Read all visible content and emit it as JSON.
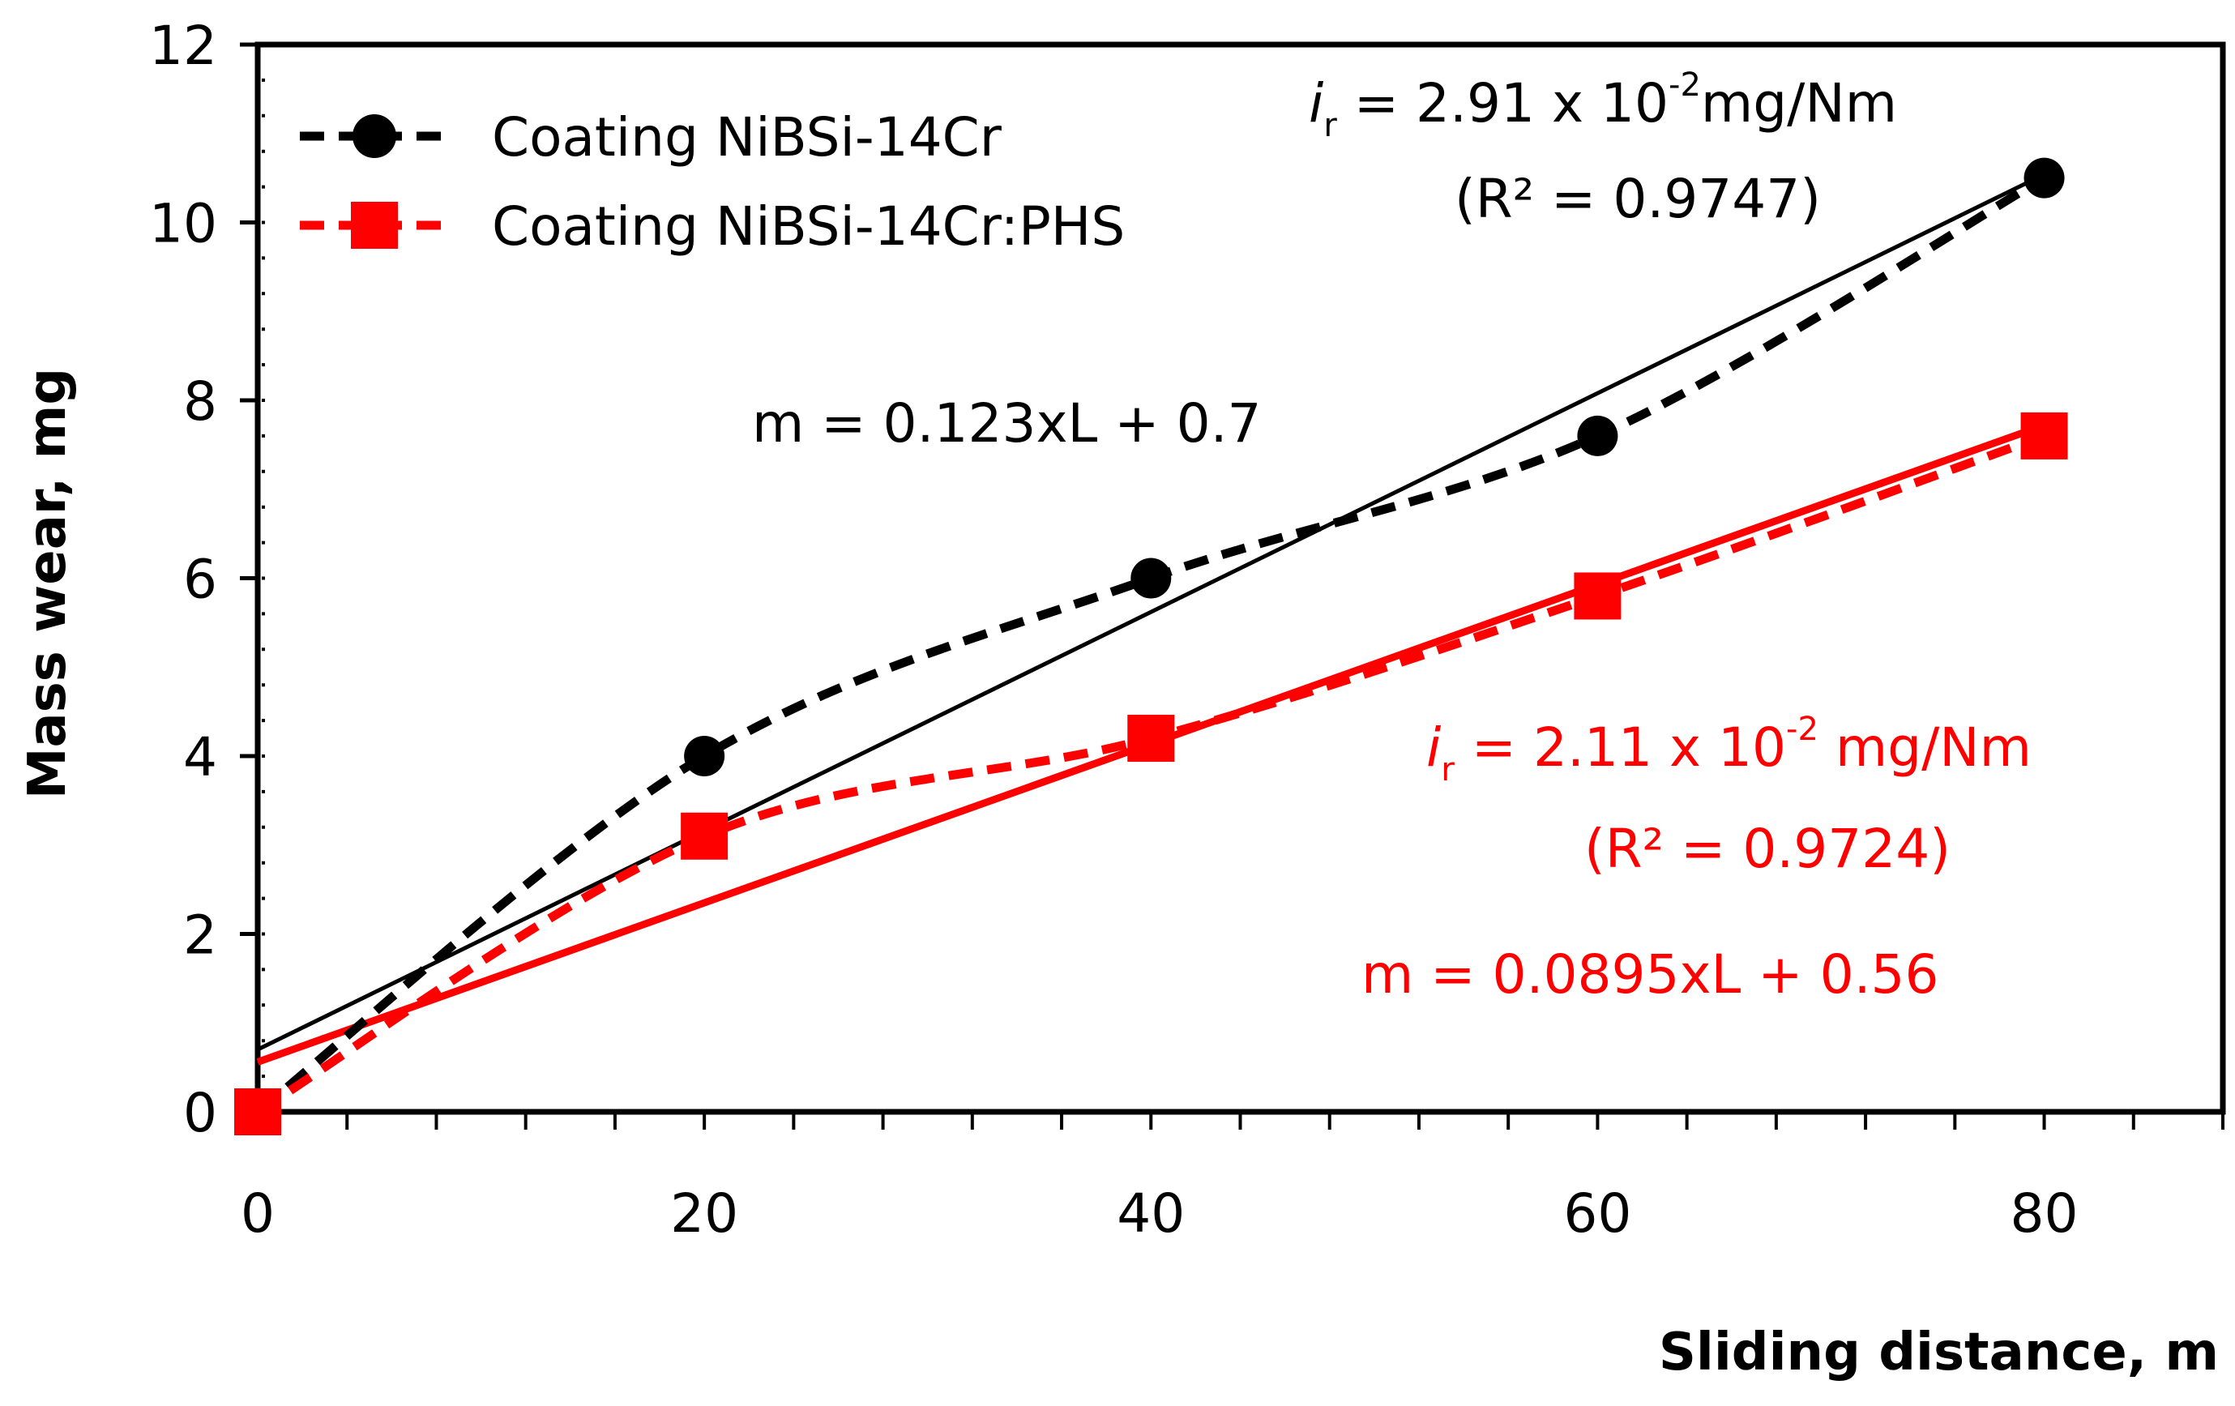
{
  "chart_data": {
    "type": "line",
    "xlabel": "Sliding distance, m",
    "ylabel": "Mass wear, mg",
    "xlim": [
      0,
      88
    ],
    "ylim": [
      0,
      12
    ],
    "x_major_ticks": [
      0,
      20,
      40,
      60,
      80
    ],
    "x_tick_labels": [
      "0",
      "20",
      "40",
      "60",
      "80"
    ],
    "x_minor_step": 4,
    "y_major_ticks": [
      0,
      2,
      4,
      6,
      8,
      10,
      12
    ],
    "y_tick_labels": [
      "0",
      "2",
      "4",
      "6",
      "8",
      "10",
      "12"
    ],
    "y_minor_step": 0.4,
    "legend_position": "top-left",
    "series": [
      {
        "name": "Coating NiBSi-14Cr",
        "color": "#000000",
        "marker": "circle",
        "line_style": "dashed-smooth",
        "x": [
          0,
          20,
          40,
          60,
          80
        ],
        "y": [
          0,
          4.0,
          6.0,
          7.6,
          10.5
        ],
        "trendline": {
          "slope": 0.123,
          "intercept": 0.7
        }
      },
      {
        "name": "Coating NiBSi-14Cr:PHS",
        "color": "#ff0000",
        "marker": "square",
        "line_style": "dashed-smooth",
        "x": [
          0,
          20,
          40,
          60,
          80
        ],
        "y": [
          0,
          3.1,
          4.2,
          5.8,
          7.6
        ],
        "trendline": {
          "slope": 0.0895,
          "intercept": 0.56
        }
      }
    ],
    "annotations": {
      "black": {
        "color": "#000000",
        "rate_symbol": "i",
        "rate_subscript": "r",
        "rate_text": " = 2.91 x 10",
        "rate_exponent": "-2",
        "rate_unit": "mg/Nm",
        "r2_text": "(R² = 0.9747)",
        "equation": "m = 0.123xL + 0.7"
      },
      "red": {
        "color": "#ff0000",
        "rate_symbol": "i",
        "rate_subscript": "r",
        "rate_text": " = 2.11 x 10",
        "rate_exponent": "-2",
        "rate_unit": " mg/Nm",
        "r2_text": "(R² = 0.9724)",
        "equation": "m = 0.0895xL + 0.56"
      }
    }
  }
}
